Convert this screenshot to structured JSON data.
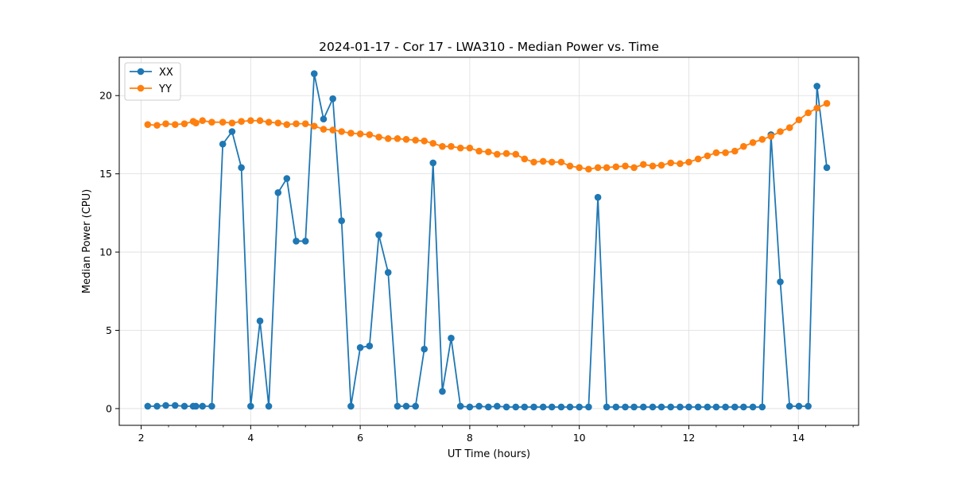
{
  "chart_data": {
    "type": "line",
    "title": "2024-01-17 - Cor 17 - LWA310 - Median Power vs. Time",
    "xlabel": "UT Time (hours)",
    "ylabel": "Median Power (CPU)",
    "xlim": [
      1.6,
      15.1
    ],
    "ylim": [
      -1.07,
      22.45
    ],
    "xticks": [
      2,
      4,
      6,
      8,
      10,
      12,
      14
    ],
    "yticks": [
      0,
      5,
      10,
      15,
      20
    ],
    "grid": true,
    "legend_position": "top-left",
    "series": [
      {
        "name": "XX",
        "color": "#1f77b4",
        "x": [
          2.12,
          2.29,
          2.45,
          2.62,
          2.79,
          2.95,
          3.0,
          3.12,
          3.29,
          3.49,
          3.66,
          3.83,
          4.0,
          4.17,
          4.33,
          4.5,
          4.66,
          4.83,
          5.0,
          5.16,
          5.33,
          5.5,
          5.66,
          5.83,
          6.0,
          6.17,
          6.34,
          6.51,
          6.68,
          6.84,
          7.01,
          7.17,
          7.33,
          7.5,
          7.66,
          7.83,
          8.0,
          8.17,
          8.34,
          8.5,
          8.67,
          8.84,
          9.0,
          9.17,
          9.34,
          9.5,
          9.67,
          9.83,
          10.0,
          10.17,
          10.34,
          10.5,
          10.67,
          10.84,
          11.0,
          11.17,
          11.34,
          11.5,
          11.67,
          11.84,
          12.0,
          12.17,
          12.34,
          12.5,
          12.67,
          12.84,
          13.0,
          13.17,
          13.34,
          13.5,
          13.67,
          13.84,
          14.01,
          14.18,
          14.34,
          14.52
        ],
        "y": [
          0.15,
          0.15,
          0.2,
          0.2,
          0.15,
          0.15,
          0.15,
          0.15,
          0.15,
          16.9,
          17.7,
          15.4,
          0.15,
          5.6,
          0.15,
          13.8,
          14.7,
          10.7,
          10.7,
          21.4,
          18.5,
          19.8,
          12.0,
          0.15,
          3.9,
          4.0,
          11.1,
          8.7,
          0.15,
          0.15,
          0.15,
          3.8,
          15.7,
          1.1,
          4.5,
          0.15,
          0.1,
          0.15,
          0.1,
          0.15,
          0.1,
          0.1,
          0.1,
          0.1,
          0.1,
          0.1,
          0.1,
          0.1,
          0.1,
          0.1,
          13.5,
          0.1,
          0.1,
          0.1,
          0.1,
          0.1,
          0.1,
          0.1,
          0.1,
          0.1,
          0.1,
          0.1,
          0.1,
          0.1,
          0.1,
          0.1,
          0.1,
          0.1,
          0.1,
          17.5,
          8.1,
          0.15,
          0.15,
          0.15,
          20.6,
          15.4
        ]
      },
      {
        "name": "YY",
        "color": "#ff7f0e",
        "x": [
          2.12,
          2.29,
          2.45,
          2.62,
          2.79,
          2.95,
          3.0,
          3.12,
          3.29,
          3.49,
          3.66,
          3.83,
          4.0,
          4.17,
          4.33,
          4.5,
          4.66,
          4.83,
          5.0,
          5.16,
          5.33,
          5.5,
          5.66,
          5.83,
          6.0,
          6.17,
          6.34,
          6.51,
          6.68,
          6.84,
          7.01,
          7.17,
          7.33,
          7.5,
          7.66,
          7.83,
          8.0,
          8.17,
          8.34,
          8.5,
          8.67,
          8.84,
          9.0,
          9.17,
          9.34,
          9.5,
          9.67,
          9.83,
          10.0,
          10.17,
          10.34,
          10.5,
          10.67,
          10.84,
          11.0,
          11.17,
          11.34,
          11.5,
          11.67,
          11.84,
          12.0,
          12.17,
          12.34,
          12.5,
          12.67,
          12.84,
          13.0,
          13.17,
          13.34,
          13.5,
          13.67,
          13.84,
          14.01,
          14.18,
          14.34,
          14.52
        ],
        "y": [
          18.15,
          18.1,
          18.2,
          18.15,
          18.2,
          18.35,
          18.25,
          18.4,
          18.3,
          18.3,
          18.25,
          18.35,
          18.4,
          18.4,
          18.3,
          18.25,
          18.15,
          18.2,
          18.2,
          18.05,
          17.85,
          17.8,
          17.7,
          17.6,
          17.55,
          17.5,
          17.35,
          17.25,
          17.25,
          17.2,
          17.15,
          17.1,
          16.95,
          16.75,
          16.75,
          16.65,
          16.65,
          16.45,
          16.4,
          16.25,
          16.3,
          16.25,
          15.95,
          15.75,
          15.8,
          15.75,
          15.75,
          15.5,
          15.4,
          15.3,
          15.4,
          15.4,
          15.45,
          15.5,
          15.4,
          15.6,
          15.5,
          15.55,
          15.7,
          15.65,
          15.75,
          15.95,
          16.15,
          16.35,
          16.35,
          16.45,
          16.75,
          17.0,
          17.2,
          17.4,
          17.7,
          17.95,
          18.45,
          18.9,
          19.2,
          19.5
        ]
      }
    ]
  }
}
